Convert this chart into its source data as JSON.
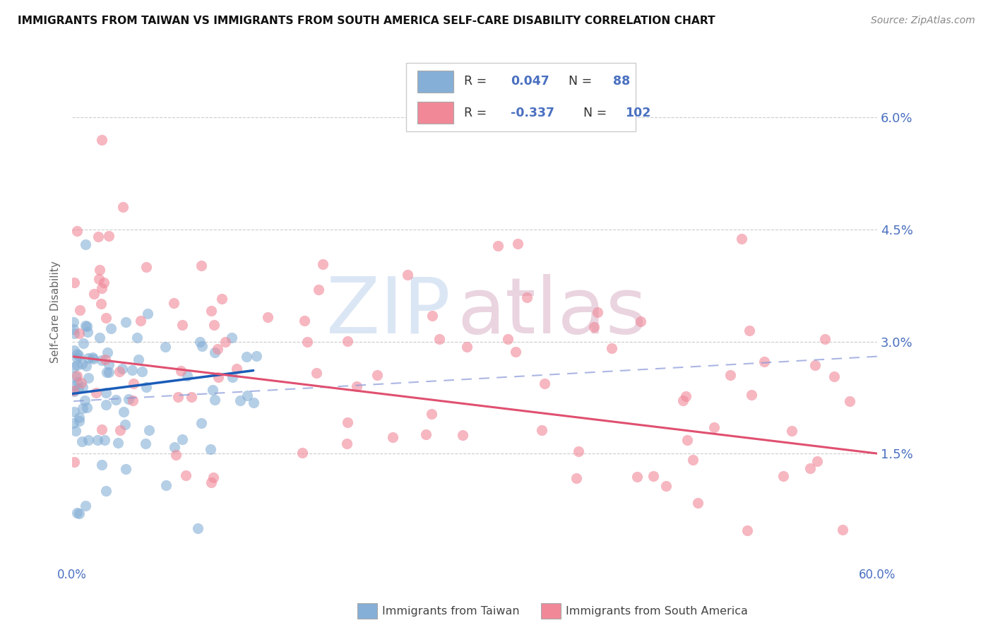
{
  "title": "IMMIGRANTS FROM TAIWAN VS IMMIGRANTS FROM SOUTH AMERICA SELF-CARE DISABILITY CORRELATION CHART",
  "source": "Source: ZipAtlas.com",
  "xlim": [
    0.0,
    0.6
  ],
  "ylim": [
    0.0,
    0.068
  ],
  "yticks": [
    0.015,
    0.03,
    0.045,
    0.06
  ],
  "xticks": [
    0.0,
    0.2,
    0.4,
    0.6
  ],
  "ytick_labels": [
    "1.5%",
    "3.0%",
    "4.5%",
    "6.0%"
  ],
  "xtick_labels": [
    "0.0%",
    "",
    "",
    "60.0%"
  ],
  "R_taiwan": 0.047,
  "N_taiwan": 88,
  "R_south_america": -0.337,
  "N_south_america": 102,
  "taiwan_dot_color": "#85afd6",
  "south_america_dot_color": "#f08898",
  "taiwan_line_color": "#1a5cb8",
  "south_america_line_color": "#e05070",
  "dashed_line_color": "#8898d8",
  "grid_color": "#cccccc",
  "title_color": "#111111",
  "axis_tick_color": "#4a70c0",
  "source_color": "#888888",
  "legend_text_color": "#4a70c0",
  "legend_R_color": "#333333",
  "ylabel": "Self-Care Disability",
  "tw_label": "Immigrants from Taiwan",
  "sa_label": "Immigrants from South America"
}
